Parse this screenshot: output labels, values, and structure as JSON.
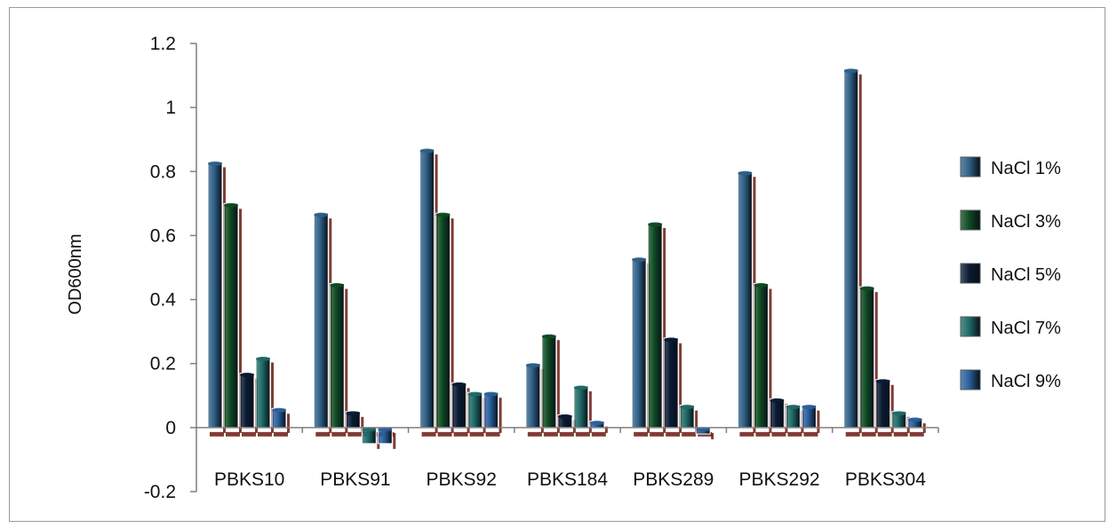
{
  "chart_data": {
    "type": "bar",
    "title": "",
    "xlabel": "",
    "ylabel": "OD600nm",
    "ylim": [
      -0.2,
      1.2
    ],
    "yticks": [
      "-0.2",
      "0",
      "0.2",
      "0.4",
      "0.6",
      "0.8",
      "1",
      "1.2"
    ],
    "grid": false,
    "legend_position": "right",
    "categories": [
      "PBKS10",
      "PBKS91",
      "PBKS92",
      "PBKS184",
      "PBKS289",
      "PBKS292",
      "PBKS304"
    ],
    "series": [
      {
        "name": "NaCl 1%",
        "color": "#2f5f86",
        "values": [
          0.83,
          0.67,
          0.87,
          0.2,
          0.53,
          0.8,
          1.12
        ]
      },
      {
        "name": "NaCl 3%",
        "color": "#0e4a22",
        "values": [
          0.7,
          0.45,
          0.67,
          0.29,
          0.64,
          0.45,
          0.44
        ]
      },
      {
        "name": "NaCl 5%",
        "color": "#0a1a33",
        "values": [
          0.17,
          0.05,
          0.14,
          0.04,
          0.28,
          0.09,
          0.15
        ]
      },
      {
        "name": "NaCl 7%",
        "color": "#1f6a66",
        "values": [
          0.22,
          -0.05,
          0.11,
          0.13,
          0.07,
          0.07,
          0.05
        ]
      },
      {
        "name": "NaCl 9%",
        "color": "#2a5f9a",
        "values": [
          0.06,
          -0.05,
          0.11,
          0.02,
          -0.02,
          0.07,
          0.03
        ]
      }
    ]
  }
}
